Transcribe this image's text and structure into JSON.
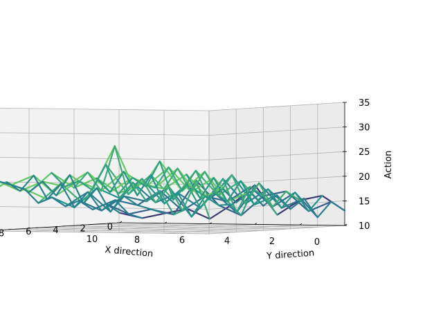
{
  "chart_data": {
    "type": "3d-wireframe",
    "title": "",
    "xlabel": "X direction",
    "ylabel": "Y direction",
    "zlabel": "Action",
    "xlim": [
      0,
      10
    ],
    "ylim": [
      0,
      10
    ],
    "zlim": [
      10,
      35
    ],
    "x_ticks": [
      "0",
      "2",
      "4",
      "6",
      "8",
      "10"
    ],
    "y_ticks": [
      "0",
      "2",
      "4",
      "6",
      "8",
      "10"
    ],
    "z_ticks": [
      "10",
      "15",
      "20",
      "25",
      "30",
      "35"
    ],
    "grid": true,
    "colormap": "viridis",
    "colors": {
      "low": "#440154",
      "mid_low": "#31688e",
      "mid": "#21918c",
      "mid_high": "#5ec962",
      "high": "#fde725"
    },
    "z_grid": [
      [
        13,
        16,
        15,
        12,
        18,
        14,
        11,
        13,
        12,
        11,
        12
      ],
      [
        15,
        13,
        17,
        16,
        12,
        14,
        19,
        12,
        13,
        12,
        14
      ],
      [
        12,
        17,
        14,
        18,
        15,
        16,
        13,
        17,
        14,
        15,
        13
      ],
      [
        16,
        14,
        19,
        13,
        17,
        12,
        18,
        15,
        16,
        13,
        15
      ],
      [
        14,
        18,
        15,
        20,
        14,
        17,
        15,
        19,
        13,
        17,
        14
      ],
      [
        17,
        15,
        21,
        16,
        19,
        15,
        20,
        16,
        18,
        14,
        16
      ],
      [
        15,
        20,
        17,
        22,
        16,
        21,
        17,
        23,
        15,
        19,
        15
      ],
      [
        18,
        16,
        22,
        18,
        24,
        17,
        27,
        18,
        21,
        16,
        18
      ],
      [
        16,
        21,
        18,
        23,
        19,
        22,
        18,
        20,
        17,
        21,
        19
      ],
      [
        19,
        17,
        23,
        19,
        21,
        18,
        22,
        19,
        20,
        18,
        20
      ],
      [
        17,
        22,
        19,
        20,
        18,
        21,
        19,
        22,
        18,
        20,
        17
      ]
    ]
  }
}
